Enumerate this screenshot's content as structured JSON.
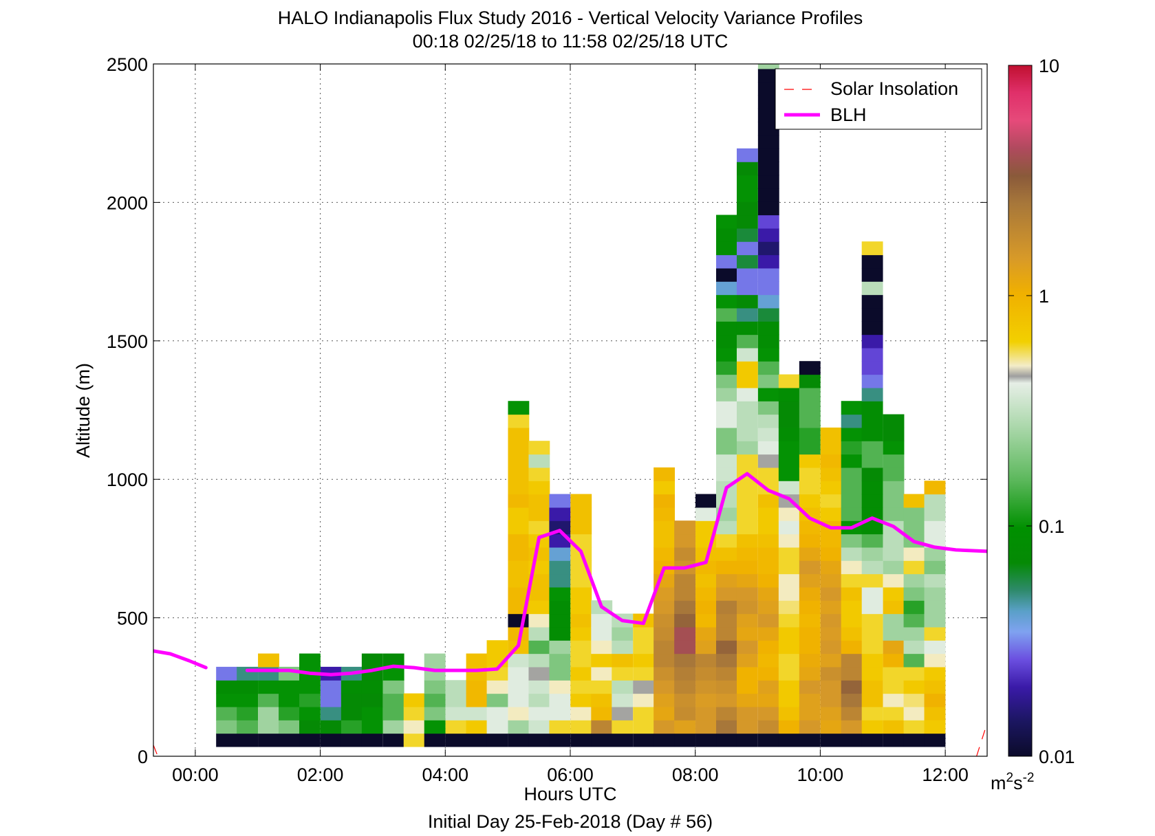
{
  "chart_data": {
    "type": "heatmap",
    "title": "HALO Indianapolis Flux Study 2016 - Vertical Velocity Variance Profiles",
    "subtitle": "00:18 02/25/18 to 11:58 02/25/18  UTC",
    "xlabel": "Hours UTC",
    "xlabel2": "Initial Day 25-Feb-2018 (Day # 56)",
    "ylabel": "Altitude (m)",
    "xlim": [
      -0.67,
      12.67
    ],
    "ylim": [
      0,
      2500
    ],
    "x_ticks": [
      0,
      2,
      4,
      6,
      8,
      10,
      12
    ],
    "x_tick_labels": [
      "00:00",
      "02:00",
      "04:00",
      "06:00",
      "08:00",
      "10:00",
      "12:00"
    ],
    "y_ticks": [
      0,
      500,
      1000,
      1500,
      2000,
      2500
    ],
    "y_tick_labels": [
      "0",
      "500",
      "1000",
      "1500",
      "2000",
      "2500"
    ],
    "grid": true,
    "legend_position": "top-right",
    "legend": [
      {
        "label": "Solar Insolation",
        "color": "#ff0000",
        "style": "dashed"
      },
      {
        "label": "BLH",
        "color": "#ff00ff",
        "style": "solid"
      }
    ],
    "colorbar": {
      "scale": "log",
      "range": [
        0.01,
        10
      ],
      "tick_labels": [
        "0.01",
        "0.1",
        "1",
        "10"
      ],
      "unit_base": "m",
      "unit_exp1": "2",
      "unit_mid": "s",
      "unit_exp2": "-2"
    },
    "cell_width_hours": 0.333,
    "cell_height_m": 48,
    "profiles": [
      {
        "t": 0.5,
        "v": [
          0.01,
          0.2,
          0.15,
          0.1,
          0.08,
          0.03
        ]
      },
      {
        "t": 0.83,
        "v": [
          0.01,
          0.15,
          0.12,
          0.1,
          0.08,
          0.05
        ]
      },
      {
        "t": 1.17,
        "v": [
          0.01,
          0.25,
          0.25,
          0.15,
          0.1,
          0.05,
          0.8
        ]
      },
      {
        "t": 1.5,
        "v": [
          0.01,
          0.2,
          0.12,
          0.1,
          0.1,
          0.2
        ]
      },
      {
        "t": 1.83,
        "v": [
          0.01,
          0.07,
          0.1,
          0.12,
          0.1,
          0.1,
          0.1
        ]
      },
      {
        "t": 2.17,
        "v": [
          0.01,
          0.07,
          0.05,
          0.03,
          0.03,
          0.02
        ]
      },
      {
        "t": 2.5,
        "v": [
          0.01,
          0.12,
          0.07,
          0.07,
          0.08,
          0.05
        ]
      },
      {
        "t": 2.83,
        "v": [
          0.01,
          0.1,
          0.1,
          0.07,
          0.08,
          0.07,
          0.07
        ]
      },
      {
        "t": 3.17,
        "v": [
          0.01,
          0.25,
          0.15,
          0.15,
          0.2,
          0.1,
          0.07
        ]
      },
      {
        "t": 3.5,
        "v": [
          0.6,
          0.5,
          0.6,
          0.7
        ]
      },
      {
        "t": 3.83,
        "v": [
          0.01,
          0.1,
          0.2,
          0.15,
          0.2,
          0.25,
          0.25
        ]
      },
      {
        "t": 4.17,
        "v": [
          0.01,
          0.6,
          0.35,
          0.3,
          0.3
        ]
      },
      {
        "t": 4.5,
        "v": [
          0.01,
          0.7,
          0.35,
          0.9,
          0.9,
          0.8,
          0.8
        ]
      },
      {
        "t": 4.83,
        "v": [
          0.01,
          0.4,
          0.4,
          0.2,
          0.5,
          0.6,
          0.7,
          0.7
        ]
      },
      {
        "t": 5.17,
        "v": [
          0.01,
          0.25,
          0.5,
          0.4,
          0.4,
          0.4,
          0.35,
          0.8,
          0.9,
          0.01,
          0.9,
          0.9,
          0.8,
          0.8,
          0.9,
          0.9,
          0.7,
          0.7,
          0.9,
          0.8,
          0.8,
          0.8,
          0.8,
          0.8,
          0.6,
          0.1
        ]
      },
      {
        "t": 5.5,
        "v": [
          0.01,
          0.35,
          0.4,
          0.3,
          0.35,
          0.45,
          0.3,
          0.15,
          0.3,
          0.5,
          0.7,
          0.8,
          0.8,
          0.7,
          0.8,
          0.7,
          0.6,
          0.8,
          0.8,
          0.7,
          0.6,
          0.3,
          0.6
        ]
      },
      {
        "t": 5.83,
        "v": [
          0.01,
          0.6,
          0.4,
          0.4,
          0.5,
          0.2,
          0.2,
          0.25,
          0.08,
          0.08,
          0.08,
          0.1,
          0.05,
          0.05,
          0.04,
          0.02,
          0.015,
          0.02,
          0.03
        ]
      },
      {
        "t": 6.17,
        "v": [
          0.01,
          0.6,
          0.5,
          0.7,
          0.6,
          0.7,
          0.6,
          0.6,
          0.7,
          0.8,
          0.7,
          0.7,
          0.6,
          0.6,
          0.6,
          0.6,
          0.8,
          0.8,
          0.8
        ]
      },
      {
        "t": 6.5,
        "v": [
          0.01,
          2.0,
          0.9,
          0.8,
          0.6,
          0.5,
          0.7,
          0.5,
          0.4,
          0.4,
          0.3
        ]
      },
      {
        "t": 6.83,
        "v": [
          0.01,
          0.6,
          0.45,
          0.35,
          0.3,
          0.6,
          0.8,
          0.3,
          0.25,
          0.3
        ]
      },
      {
        "t": 7.17,
        "v": [
          0.01,
          0.6,
          0.6,
          0.5,
          0.45,
          0.6,
          0.7,
          0.6,
          0.6,
          0.8
        ]
      },
      {
        "t": 7.5,
        "v": [
          0.01,
          1.5,
          1.2,
          1.3,
          1.5,
          1.7,
          2.0,
          2.0,
          1.8,
          1.7,
          1.5,
          1.4,
          1.2,
          1.0,
          0.9,
          0.8,
          0.8,
          0.9,
          1.0,
          0.7,
          0.9
        ]
      },
      {
        "t": 7.83,
        "v": [
          0.01,
          1.3,
          1.8,
          1.7,
          2.0,
          2.2,
          2.5,
          4.0,
          4.0,
          3.0,
          2.5,
          2.0,
          2.0,
          1.6,
          1.8,
          1.5,
          1.5
        ]
      },
      {
        "t": 8.17,
        "v": [
          0.01,
          1.5,
          1.5,
          1.4,
          1.6,
          1.8,
          2.0,
          1.3,
          1.2,
          0.9,
          1.0,
          0.9,
          0.8,
          0.9,
          0.8,
          0.7,
          0.7,
          0.4,
          0.01
        ]
      },
      {
        "t": 8.5,
        "v": [
          0.01,
          2.5,
          2.0,
          1.5,
          1.7,
          2.0,
          2.5,
          3.0,
          2.0,
          2.0,
          2.2,
          1.5,
          1.3,
          1.0,
          0.8,
          0.6,
          0.3,
          0.25,
          0.3,
          0.3,
          0.35,
          0.35,
          0.2,
          0.2,
          0.4,
          0.4,
          0.25,
          0.2,
          0.12,
          0.1,
          0.08,
          0.08,
          0.15,
          0.1,
          0.04,
          0.01,
          0.03,
          0.08,
          0.08,
          0.1
        ]
      },
      {
        "t": 8.83,
        "v": [
          0.01,
          1.5,
          1.5,
          1.2,
          1.0,
          1.0,
          1.3,
          1.5,
          1.2,
          1.3,
          1.6,
          1.5,
          1.2,
          1.0,
          0.9,
          0.8,
          0.6,
          0.6,
          0.6,
          0.6,
          0.6,
          0.6,
          0.25,
          0.3,
          0.3,
          0.3,
          0.4,
          0.7,
          0.7,
          0.35,
          0.15,
          0.08,
          0.05,
          0.07,
          0.03,
          0.03,
          0.06,
          0.03,
          0.06,
          0.07,
          0.07,
          0.1,
          0.1,
          0.07,
          0.03
        ]
      },
      {
        "t": 9.17,
        "v": [
          0.01,
          1.8,
          1.5,
          1.2,
          1.3,
          1.0,
          0.9,
          1.0,
          1.2,
          1.5,
          1.3,
          1.2,
          1.0,
          0.9,
          0.9,
          0.8,
          0.7,
          0.7,
          0.8,
          0.6,
          0.6,
          0.45,
          0.4,
          0.35,
          0.3,
          0.2,
          0.1,
          0.2,
          0.15,
          0.1,
          0.08,
          0.08,
          0.06,
          0.04,
          0.03,
          0.03,
          0.02,
          0.015,
          0.02,
          0.025,
          0.01,
          0.01,
          0.01,
          0.01,
          0.01,
          0.01,
          0.01,
          0.01,
          0.01,
          0.01,
          0.01,
          0.25
        ]
      },
      {
        "t": 9.5,
        "v": [
          0.01,
          1.0,
          0.8,
          0.7,
          0.7,
          0.6,
          0.6,
          0.7,
          0.7,
          0.6,
          0.55,
          0.5,
          0.5,
          0.6,
          0.6,
          0.5,
          0.4,
          0.5,
          0.45,
          0.35,
          0.1,
          0.1,
          0.1,
          0.08,
          0.07,
          0.07,
          0.08,
          0.6
        ]
      },
      {
        "t": 9.83,
        "v": [
          0.01,
          1.5,
          1.3,
          1.3,
          1.5,
          1.2,
          1.1,
          1.0,
          1.0,
          0.9,
          1.0,
          1.1,
          1.3,
          1.5,
          1.2,
          1.0,
          0.9,
          0.8,
          0.7,
          0.6,
          0.6,
          0.7,
          0.12,
          0.12,
          0.15,
          0.15,
          0.15,
          0.07,
          0.01
        ]
      },
      {
        "t": 10.17,
        "v": [
          0.01,
          1.2,
          1.3,
          1.5,
          1.5,
          1.7,
          1.3,
          1.5,
          1.4,
          1.5,
          1.3,
          1.5,
          1.3,
          1.2,
          1.0,
          0.9,
          0.9,
          0.7,
          0.6,
          0.7,
          0.8,
          0.9,
          0.8,
          0.8
        ]
      },
      {
        "t": 10.5,
        "v": [
          0.01,
          1.5,
          2.0,
          2.5,
          3.0,
          2.0,
          2.0,
          1.0,
          0.8,
          0.7,
          0.7,
          0.8,
          0.6,
          0.5,
          0.3,
          0.2,
          0.1,
          0.15,
          0.15,
          0.15,
          0.15,
          0.1,
          0.12,
          0.1,
          0.05,
          0.1
        ]
      },
      {
        "t": 10.83,
        "v": [
          0.01,
          0.7,
          0.6,
          0.8,
          0.8,
          0.7,
          0.7,
          0.6,
          0.6,
          0.6,
          0.4,
          0.4,
          0.6,
          0.3,
          0.25,
          0.15,
          0.08,
          0.08,
          0.08,
          0.08,
          0.07,
          0.15,
          0.15,
          0.08,
          0.08,
          0.08,
          0.05,
          0.03,
          0.025,
          0.025,
          0.02,
          0.01,
          0.01,
          0.01,
          0.3,
          0.01,
          0.01,
          0.6
        ]
      },
      {
        "t": 11.17,
        "v": [
          0.01,
          0.8,
          0.6,
          0.5,
          0.6,
          0.6,
          1.0,
          1.2,
          0.25,
          0.25,
          0.8,
          0.7,
          0.5,
          0.25,
          0.3,
          0.3,
          0.3,
          0.2,
          0.2,
          0.2,
          0.15,
          0.15,
          0.1,
          0.07,
          0.07
        ]
      },
      {
        "t": 11.5,
        "v": [
          0.01,
          0.6,
          0.5,
          0.55,
          0.7,
          0.6,
          0.15,
          0.3,
          0.25,
          0.15,
          0.12,
          0.2,
          0.25,
          0.6,
          0.5,
          0.2,
          0.2,
          0.2,
          0.8
        ]
      },
      {
        "t": 11.83,
        "v": [
          0.01,
          0.7,
          0.8,
          1.0,
          0.8,
          0.7,
          0.5,
          0.4,
          0.6,
          0.25,
          0.25,
          0.25,
          0.3,
          0.2,
          0.25,
          0.4,
          0.4,
          0.3,
          0.3,
          0.9
        ]
      }
    ],
    "blh": {
      "x": [
        -0.67,
        -0.4,
        -0.1,
        0.17,
        0.5,
        0.83,
        1.17,
        1.5,
        1.83,
        2.17,
        2.5,
        2.83,
        3.17,
        3.5,
        3.83,
        4.17,
        4.5,
        4.83,
        5.17,
        5.5,
        5.83,
        6.17,
        6.5,
        6.83,
        7.17,
        7.5,
        7.83,
        8.17,
        8.5,
        8.83,
        9.17,
        9.5,
        9.83,
        10.17,
        10.5,
        10.83,
        11.17,
        11.5,
        11.83,
        12.17,
        12.67
      ],
      "y": [
        380,
        370,
        345,
        320,
        null,
        310,
        310,
        310,
        300,
        295,
        300,
        310,
        325,
        320,
        310,
        310,
        310,
        315,
        400,
        790,
        815,
        740,
        540,
        490,
        480,
        680,
        680,
        700,
        970,
        1020,
        960,
        930,
        860,
        825,
        825,
        860,
        830,
        775,
        755,
        745,
        740
      ]
    },
    "solar": {
      "left": {
        "x": [
          -0.67,
          -0.6
        ],
        "y": [
          40,
          0
        ]
      },
      "right": {
        "x": [
          12.5,
          12.67
        ],
        "y": [
          0,
          120
        ]
      }
    }
  }
}
